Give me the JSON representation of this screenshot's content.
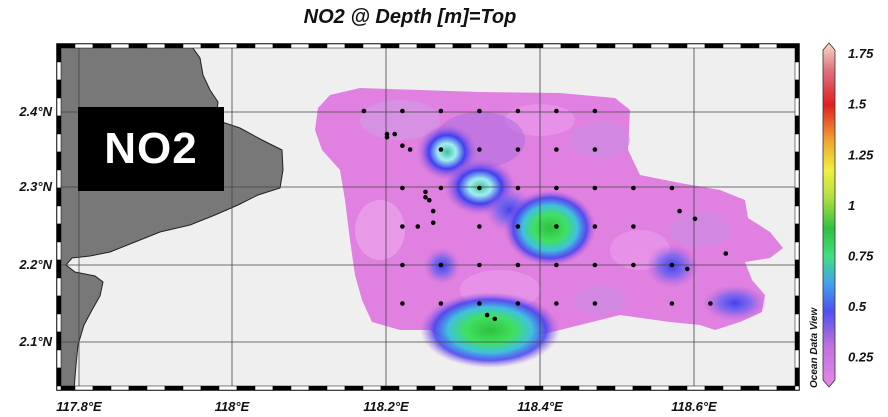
{
  "title": "NO2 @ Depth [m]=Top",
  "overlay_label": "NO2",
  "watermark": "Ocean Data View",
  "chart_data": {
    "type": "heatmap",
    "title": "NO2 @ Depth [m]=Top",
    "variable": "NO2",
    "x_axis": {
      "ticks": [
        "117.8°E",
        "118°E",
        "118.2°E",
        "118.4°E",
        "118.6°E"
      ],
      "values": [
        117.8,
        118.0,
        118.2,
        118.4,
        118.6
      ],
      "range": [
        117.78,
        118.74
      ]
    },
    "y_axis": {
      "ticks": [
        "2.1°N",
        "2.2°N",
        "2.3°N",
        "2.4°N"
      ],
      "values": [
        2.1,
        2.2,
        2.3,
        2.4
      ],
      "range": [
        2.04,
        2.49
      ]
    },
    "colorbar": {
      "ticks": [
        "1.75",
        "1.5",
        "1.25",
        "1",
        "0.75",
        "0.5",
        "0.25"
      ],
      "values": [
        1.75,
        1.5,
        1.25,
        1.0,
        0.75,
        0.5,
        0.25
      ],
      "range": [
        0.1,
        1.8
      ],
      "colors": [
        "#e080e0",
        "#5050f0",
        "#40e040",
        "#f0f040",
        "#f0a030",
        "#e02020",
        "#f0d0c0"
      ]
    },
    "grid": true,
    "land_color": "#787878",
    "sea_color": "#efefef",
    "stations": [
      [
        118.17,
        2.4
      ],
      [
        118.22,
        2.4
      ],
      [
        118.27,
        2.4
      ],
      [
        118.32,
        2.4
      ],
      [
        118.37,
        2.4
      ],
      [
        118.42,
        2.4
      ],
      [
        118.47,
        2.4
      ],
      [
        118.2,
        2.37
      ],
      [
        118.21,
        2.37
      ],
      [
        118.2,
        2.366
      ],
      [
        118.22,
        2.355
      ],
      [
        118.23,
        2.35
      ],
      [
        118.27,
        2.35
      ],
      [
        118.32,
        2.35
      ],
      [
        118.37,
        2.35
      ],
      [
        118.42,
        2.35
      ],
      [
        118.47,
        2.35
      ],
      [
        118.22,
        2.3
      ],
      [
        118.27,
        2.3
      ],
      [
        118.32,
        2.3
      ],
      [
        118.37,
        2.3
      ],
      [
        118.42,
        2.3
      ],
      [
        118.47,
        2.3
      ],
      [
        118.52,
        2.3
      ],
      [
        118.57,
        2.3
      ],
      [
        118.25,
        2.295
      ],
      [
        118.25,
        2.288
      ],
      [
        118.255,
        2.284
      ],
      [
        118.26,
        2.27
      ],
      [
        118.24,
        2.25
      ],
      [
        118.26,
        2.255
      ],
      [
        118.22,
        2.25
      ],
      [
        118.32,
        2.25
      ],
      [
        118.37,
        2.25
      ],
      [
        118.42,
        2.25
      ],
      [
        118.47,
        2.25
      ],
      [
        118.52,
        2.25
      ],
      [
        118.58,
        2.27
      ],
      [
        118.6,
        2.26
      ],
      [
        118.64,
        2.215
      ],
      [
        118.22,
        2.2
      ],
      [
        118.27,
        2.2
      ],
      [
        118.32,
        2.2
      ],
      [
        118.37,
        2.2
      ],
      [
        118.42,
        2.2
      ],
      [
        118.47,
        2.2
      ],
      [
        118.52,
        2.2
      ],
      [
        118.57,
        2.2
      ],
      [
        118.59,
        2.195
      ],
      [
        118.22,
        2.15
      ],
      [
        118.27,
        2.15
      ],
      [
        118.32,
        2.15
      ],
      [
        118.37,
        2.15
      ],
      [
        118.42,
        2.15
      ],
      [
        118.47,
        2.15
      ],
      [
        118.57,
        2.15
      ],
      [
        118.62,
        2.15
      ],
      [
        118.33,
        2.135
      ],
      [
        118.34,
        2.13
      ]
    ],
    "hotspots": [
      {
        "lon": 118.4,
        "lat": 2.25,
        "value": 0.85
      },
      {
        "lon": 118.33,
        "lat": 2.1,
        "value": 0.9
      },
      {
        "lon": 118.27,
        "lat": 2.35,
        "value": 0.75
      },
      {
        "lon": 118.32,
        "lat": 2.3,
        "value": 0.7
      },
      {
        "lon": 118.37,
        "lat": 2.27,
        "value": 0.5
      },
      {
        "lon": 118.57,
        "lat": 2.2,
        "value": 0.45
      },
      {
        "lon": 118.68,
        "lat": 2.15,
        "value": 0.45
      },
      {
        "lon": 118.27,
        "lat": 2.2,
        "value": 0.4
      }
    ]
  }
}
